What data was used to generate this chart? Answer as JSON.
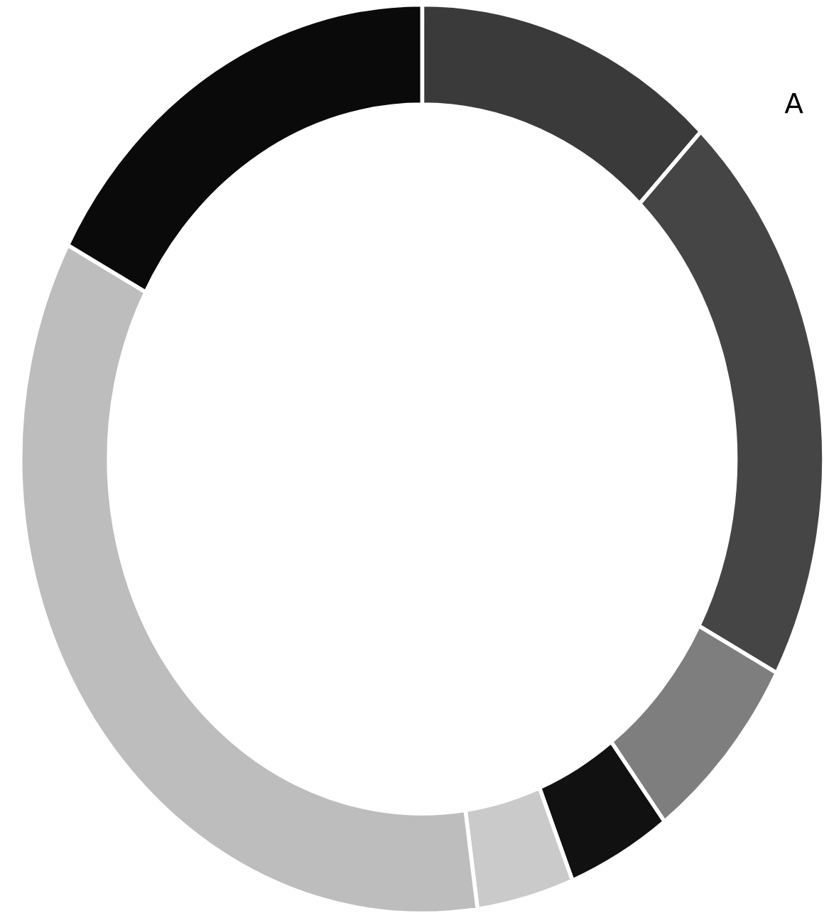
{
  "chart_data": {
    "type": "donut",
    "categories": [
      null,
      null,
      null,
      null,
      null,
      null,
      null
    ],
    "values": [
      12.2,
      20.6,
      6.9,
      4.2,
      3.9,
      35.0,
      17.2
    ],
    "colors": [
      "#3a3a3a",
      "#454545",
      "#7e7e7e",
      "#111111",
      "#cacaca",
      "#bdbdbd",
      "#0a0a0a"
    ],
    "annotations": [
      "A"
    ]
  }
}
